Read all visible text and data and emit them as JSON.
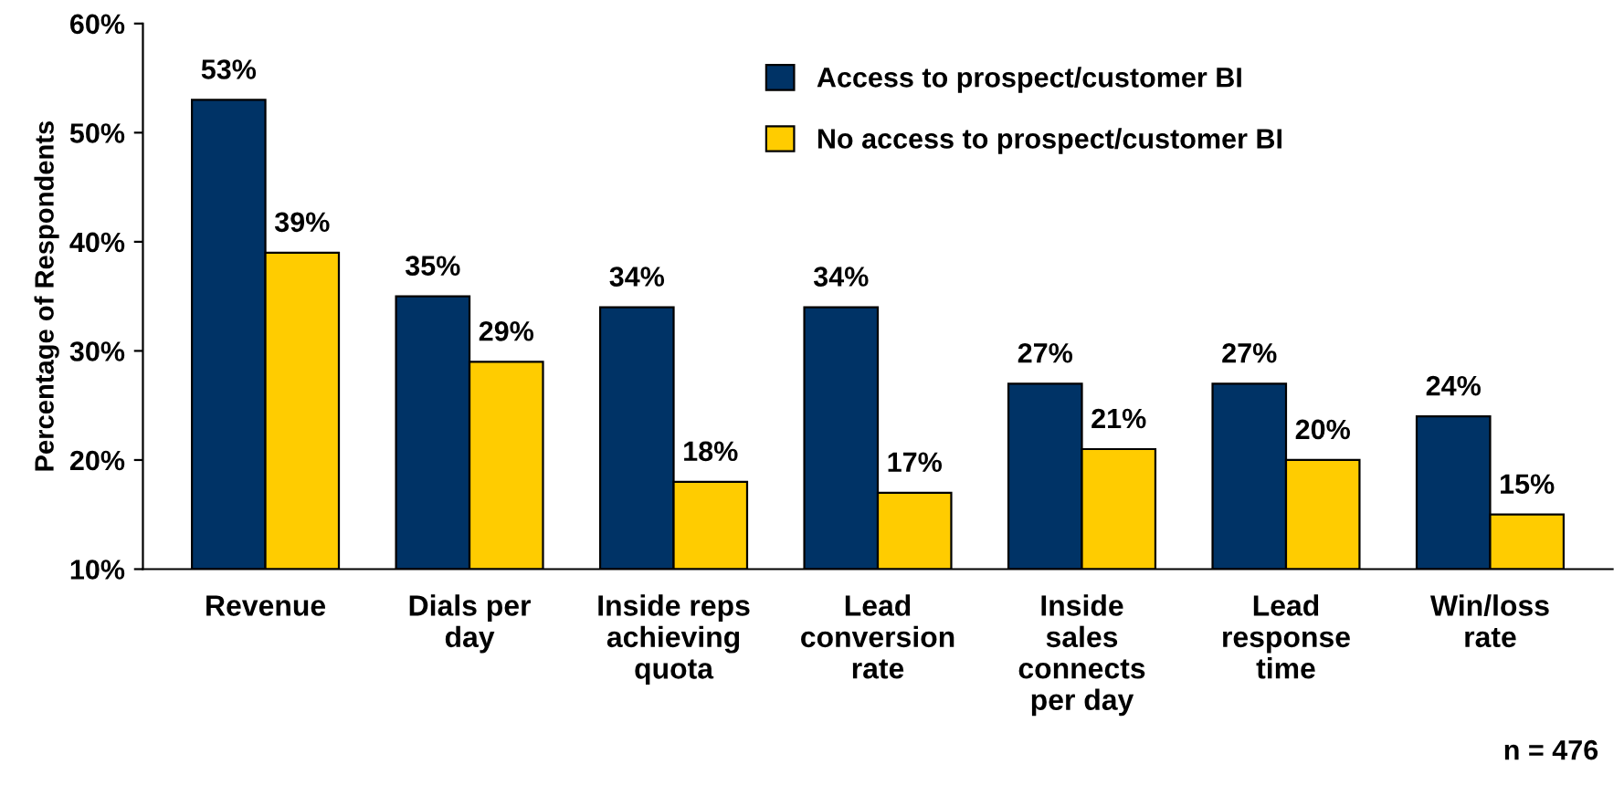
{
  "chart_data": {
    "type": "bar",
    "ylabel": "Percentage of Respondents",
    "categories": [
      "Revenue",
      "Dials per\nday",
      "Inside reps\nachieving\nquota",
      "Lead\nconversion\nrate",
      "Inside\nsales\nconnects\nper day",
      "Lead\nresponse\ntime",
      "Win/loss\nrate"
    ],
    "series": [
      {
        "name": "Access to prospect/customer BI",
        "color": "#003366",
        "values": [
          53,
          35,
          34,
          34,
          27,
          27,
          24
        ],
        "value_labels": [
          "53%",
          "35%",
          "34%",
          "34%",
          "27%",
          "27%",
          "24%"
        ]
      },
      {
        "name": "No access to prospect/customer BI",
        "color": "#ffcc00",
        "values": [
          39,
          29,
          18,
          17,
          21,
          20,
          15
        ],
        "value_labels": [
          "39%",
          "29%",
          "18%",
          "17%",
          "21%",
          "20%",
          "15%"
        ]
      }
    ],
    "ylim": [
      10,
      60
    ],
    "yticks": [
      {
        "value": 10,
        "label": "10%"
      },
      {
        "value": 20,
        "label": "20%"
      },
      {
        "value": 30,
        "label": "30%"
      },
      {
        "value": 40,
        "label": "40%"
      },
      {
        "value": 50,
        "label": "50%"
      },
      {
        "value": 60,
        "label": "60%"
      }
    ],
    "grid": false,
    "legend": "top",
    "annotations": [
      "n = 476"
    ]
  }
}
